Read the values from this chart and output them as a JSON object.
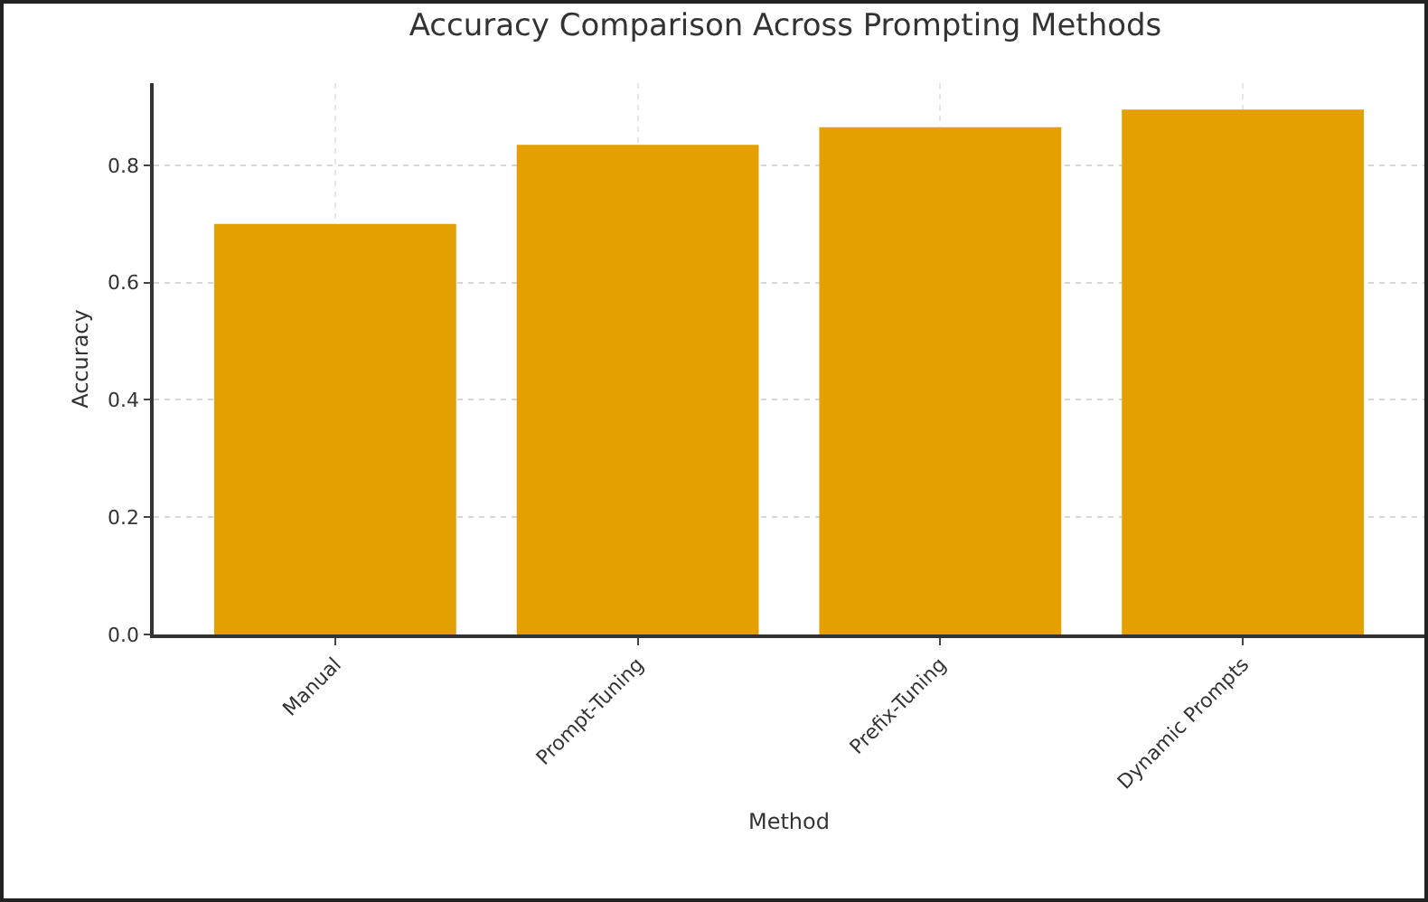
{
  "chart_data": {
    "type": "bar",
    "title": "Accuracy Comparison Across Prompting Methods",
    "xlabel": "Method",
    "ylabel": "Accuracy",
    "categories": [
      "Manual",
      "Prompt-Tuning",
      "Prefix-Tuning",
      "Dynamic Prompts"
    ],
    "values": [
      0.7,
      0.835,
      0.865,
      0.895
    ],
    "color": "#e49f00",
    "ylim": [
      0,
      0.94
    ],
    "yticks": [
      {
        "value": 0,
        "label": "0.0"
      },
      0.2,
      0.4,
      0.6,
      0.8
    ],
    "grid": true
  }
}
